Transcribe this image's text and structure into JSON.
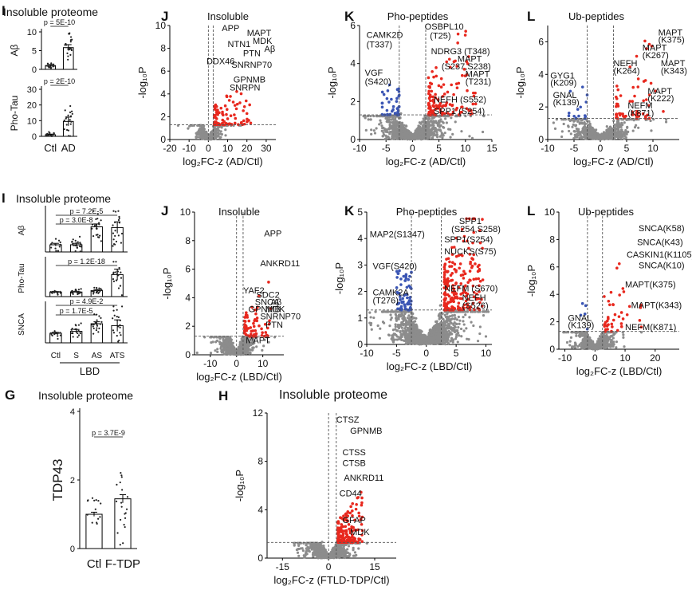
{
  "colors": {
    "up": "#e8281e",
    "down": "#3a55b4",
    "ns": "#8c8c8c",
    "bar": "#000000",
    "dot": "#222222"
  },
  "chart_data": [
    {
      "id": "bar-ad-abeta",
      "type": "bar",
      "panel_letter": "I",
      "title": "Insoluble proteome",
      "ylabel": "Aβ",
      "categories": [
        "Ctl",
        "AD"
      ],
      "values": [
        1.0,
        5.8
      ],
      "errors": [
        0.3,
        0.8
      ],
      "ylim": [
        0,
        10
      ],
      "yticks": [
        "0",
        "5",
        "10"
      ],
      "pvalues": [
        {
          "text": "p = 5E-10",
          "pair": [
            0,
            1
          ]
        }
      ],
      "show_xlabels": false
    },
    {
      "id": "bar-ad-ptau",
      "type": "bar",
      "ylabel": "Pho-Tau",
      "categories": [
        "Ctl",
        "AD"
      ],
      "values": [
        1.0,
        9.5
      ],
      "errors": [
        0.4,
        2.8
      ],
      "ylim": [
        0,
        30
      ],
      "yticks": [
        "0",
        "10",
        "20",
        "30"
      ],
      "pvalues": [
        {
          "text": "p = 2E-10",
          "pair": [
            0,
            1
          ]
        }
      ],
      "show_xlabels": true
    },
    {
      "id": "bar-lbd-abeta",
      "type": "bar",
      "panel_letter": "I",
      "title": "Insoluble proteome",
      "ylabel": "Aβ",
      "categories": [
        "Ctl",
        "S",
        "AS",
        "ATS"
      ],
      "values": [
        1.0,
        1.0,
        3.5,
        3.4
      ],
      "errors": [
        0.2,
        0.2,
        0.4,
        0.8
      ],
      "ylim": [
        0,
        6
      ],
      "pvalues": [
        {
          "text": "p = 7.2E-5",
          "pair": [
            0,
            3
          ]
        },
        {
          "text": "p = 3.0E-8",
          "pair": [
            0,
            2
          ]
        }
      ],
      "show_xlabels": false
    },
    {
      "id": "bar-lbd-ptau",
      "type": "bar",
      "ylabel": "Pho-Tau",
      "categories": [
        "Ctl",
        "S",
        "AS",
        "ATS"
      ],
      "values": [
        1.0,
        1.0,
        1.3,
        4.8
      ],
      "errors": [
        0.1,
        0.1,
        0.2,
        1.2
      ],
      "ylim": [
        0,
        8
      ],
      "pvalues": [
        {
          "text": "p = 1.2E-18",
          "pair": [
            0,
            3
          ]
        }
      ],
      "show_xlabels": false
    },
    {
      "id": "bar-lbd-snca",
      "type": "bar",
      "ylabel": "SNCA",
      "categories": [
        "Ctl",
        "S",
        "AS",
        "ATS"
      ],
      "values": [
        1.0,
        1.2,
        2.0,
        1.8
      ],
      "errors": [
        0.1,
        0.2,
        0.2,
        0.6
      ],
      "ylim": [
        0,
        4
      ],
      "pvalues": [
        {
          "text": "p = 4.9E-2",
          "pair": [
            0,
            3
          ]
        },
        {
          "text": "p = 1.7E-5",
          "pair": [
            0,
            2
          ]
        }
      ],
      "show_xlabels": true,
      "group_label": "LBD"
    },
    {
      "id": "bar-ftd-tdp43",
      "type": "bar",
      "panel_letter": "G",
      "title": "Insoluble proteome",
      "ylabel": "TDP43",
      "categories": [
        "Ctl",
        "F-TDP"
      ],
      "values": [
        1.0,
        1.45
      ],
      "errors": [
        0.06,
        0.12
      ],
      "ylim": [
        0,
        4
      ],
      "yticks": [
        "0",
        "2",
        "4"
      ],
      "pvalues": [
        {
          "text": "p = 3.7E-9",
          "pair": [
            0,
            1
          ]
        }
      ],
      "show_xlabels": true
    },
    {
      "id": "volc-ad-insoluble",
      "type": "scatter",
      "panel_letter": "J",
      "title": "Insoluble",
      "xlabel": "log₂FC-z (AD/Ctl)",
      "ylabel": "-log₁₀P",
      "xlim": [
        -20,
        35
      ],
      "ylim": [
        0,
        10
      ],
      "xticks": [
        -20,
        -10,
        0,
        10,
        20,
        30
      ],
      "yticks": [
        0,
        2,
        4,
        6,
        8,
        10
      ],
      "fc_threshold": 2.5,
      "p_threshold": 1.3,
      "seed": 11,
      "spread": [
        18,
        16
      ],
      "peak": 2.8,
      "n_ns": 700,
      "n_up": 90,
      "n_down": 0,
      "up_range": [
        3,
        22
      ],
      "labels": [
        {
          "text": "APP",
          "x": 7,
          "y": 9.5
        },
        {
          "text": "MAPT",
          "x": 20,
          "y": 9.1
        },
        {
          "text": "MDK",
          "x": 23,
          "y": 8.4
        },
        {
          "text": "Aβ",
          "x": 29,
          "y": 7.7
        },
        {
          "text": "NTN1",
          "x": 10,
          "y": 8.1
        },
        {
          "text": "PTN",
          "x": 18,
          "y": 7.3
        },
        {
          "text": "DDX46",
          "x": -1,
          "y": 6.6
        },
        {
          "text": "SNRNP70",
          "x": 12,
          "y": 6.3
        },
        {
          "text": "GPNMB",
          "x": 13,
          "y": 5.0
        },
        {
          "text": "SNRPN",
          "x": 11,
          "y": 4.3
        }
      ]
    },
    {
      "id": "volc-ad-pho",
      "type": "scatter",
      "panel_letter": "K",
      "title": "Pho-peptides",
      "xlabel": "log₂FC-z (AD/Ctl)",
      "ylabel": "-log₁₀P",
      "xlim": [
        -10,
        15
      ],
      "ylim": [
        0,
        6
      ],
      "xticks": [
        -10,
        -5,
        0,
        5,
        10,
        15
      ],
      "yticks": [
        0,
        2,
        4,
        6
      ],
      "fc_threshold": 2.5,
      "p_threshold": 1.3,
      "seed": 23,
      "spread": [
        4.5,
        4.2
      ],
      "peak": 3.5,
      "n_ns": 1300,
      "n_up": 130,
      "n_down": 40,
      "up_range": [
        3,
        12
      ],
      "down_range": [
        -6,
        -2.5
      ],
      "labels": [
        {
          "text": "CAMK2D",
          "x": -8.7,
          "y": 5.35
        },
        {
          "text": "(T337)",
          "x": -8.7,
          "y": 4.85
        },
        {
          "text": "OSBPL10",
          "x": 2.3,
          "y": 5.8
        },
        {
          "text": "(T25)",
          "x": 3.3,
          "y": 5.3
        },
        {
          "text": "NDRG3 (T348)",
          "x": 3.5,
          "y": 4.5
        },
        {
          "text": "MAPT",
          "x": 8.5,
          "y": 4.1
        },
        {
          "text": "(S237,S238)",
          "x": 5.5,
          "y": 3.7
        },
        {
          "text": "MAPT",
          "x": 10,
          "y": 3.3
        },
        {
          "text": "(T231)",
          "x": 10,
          "y": 2.9
        },
        {
          "text": "VGF",
          "x": -9,
          "y": 3.35
        },
        {
          "text": "(S420)",
          "x": -9,
          "y": 2.9
        },
        {
          "text": "NEFH (S552)",
          "x": 4,
          "y": 1.95
        },
        {
          "text": "SPP1 (S254)",
          "x": 4,
          "y": 1.35
        }
      ]
    },
    {
      "id": "volc-ad-ub",
      "type": "scatter",
      "panel_letter": "L",
      "title": "Ub-peptides",
      "xlabel": "log₂FC-z (AD/Ctl)",
      "ylabel": "-log₁₀P",
      "xlim": [
        -10,
        15
      ],
      "ylim": [
        0,
        7
      ],
      "xticks": [
        -10,
        -5,
        0,
        5,
        10
      ],
      "yticks": [
        0,
        2,
        4,
        6
      ],
      "fc_threshold": 2.5,
      "p_threshold": 1.3,
      "seed": 37,
      "spread": [
        4.5,
        3.6
      ],
      "peak": 4.0,
      "n_ns": 800,
      "n_up": 60,
      "n_down": 14,
      "up_range": [
        3,
        12
      ],
      "down_range": [
        -6,
        -2.5
      ],
      "labels": [
        {
          "text": "MAPT",
          "x": 11,
          "y": 6.4
        },
        {
          "text": "(K375)",
          "x": 11,
          "y": 5.95
        },
        {
          "text": "MAPT",
          "x": 8,
          "y": 5.45
        },
        {
          "text": "(K267)",
          "x": 8,
          "y": 5.0
        },
        {
          "text": "MAPT",
          "x": 11.5,
          "y": 4.5
        },
        {
          "text": "(K343)",
          "x": 11.5,
          "y": 4.05
        },
        {
          "text": "NEFH",
          "x": 2.5,
          "y": 4.5
        },
        {
          "text": "(K264)",
          "x": 2.5,
          "y": 4.05
        },
        {
          "text": "GYG1",
          "x": -9.5,
          "y": 3.75
        },
        {
          "text": "(K209)",
          "x": -9.5,
          "y": 3.3
        },
        {
          "text": "GNAL",
          "x": -9,
          "y": 2.55
        },
        {
          "text": "(K139)",
          "x": -9,
          "y": 2.1
        },
        {
          "text": "MAPT",
          "x": 9,
          "y": 2.8
        },
        {
          "text": "(K222)",
          "x": 9,
          "y": 2.35
        },
        {
          "text": "NEFM",
          "x": 5.2,
          "y": 1.9
        },
        {
          "text": "(K871)",
          "x": 5.2,
          "y": 1.45
        }
      ]
    },
    {
      "id": "volc-lbd-insoluble",
      "type": "scatter",
      "panel_letter": "J",
      "title": "Insoluble",
      "xlabel": "log₂FC-z (LBD/Ctl)",
      "ylabel": "-log₁₀P",
      "xlim": [
        -16,
        18
      ],
      "ylim": [
        0,
        10
      ],
      "xticks": [
        -10,
        0,
        10
      ],
      "yticks": [
        0,
        2,
        4,
        6,
        8,
        10
      ],
      "fc_threshold": 2.5,
      "p_threshold": 1.3,
      "seed": 41,
      "spread": [
        10,
        13
      ],
      "peak": 2.5,
      "n_ns": 1300,
      "n_up": 70,
      "n_down": 0,
      "up_range": [
        3,
        13
      ],
      "labels": [
        {
          "text": "APP",
          "x": 10.5,
          "y": 8.3
        },
        {
          "text": "ANKRD11",
          "x": 9,
          "y": 6.2
        },
        {
          "text": "YAF2",
          "x": 2.5,
          "y": 4.3
        },
        {
          "text": "SDC2",
          "x": 7.5,
          "y": 4.0
        },
        {
          "text": "SNCA",
          "x": 7,
          "y": 3.5
        },
        {
          "text": "Aβ",
          "x": 13,
          "y": 3.5
        },
        {
          "text": "GPNMB",
          "x": 4.5,
          "y": 3.0
        },
        {
          "text": "MDK",
          "x": 11,
          "y": 3.0
        },
        {
          "text": "SNRNP70",
          "x": 9,
          "y": 2.5
        },
        {
          "text": "PTN",
          "x": 11,
          "y": 1.9
        },
        {
          "text": "MAPT",
          "x": 3.5,
          "y": 0.8
        }
      ]
    },
    {
      "id": "volc-lbd-pho",
      "type": "scatter",
      "panel_letter": "K",
      "title": "Pho-peptides",
      "xlabel": "log₂FC-z (LBD/Ctl)",
      "ylabel": "-log₁₀P",
      "xlim": [
        -10,
        11
      ],
      "ylim": [
        0,
        5
      ],
      "xticks": [
        -10,
        -5,
        0,
        5,
        10
      ],
      "yticks": [
        0,
        1,
        2,
        3,
        4,
        5
      ],
      "fc_threshold": 2.5,
      "p_threshold": 1.3,
      "seed": 53,
      "spread": [
        4.6,
        3.4
      ],
      "peak": 3.0,
      "n_ns": 1800,
      "n_up": 220,
      "n_down": 70,
      "up_range": [
        3,
        9.5
      ],
      "down_range": [
        -5,
        -2.5
      ],
      "labels": [
        {
          "text": "SPP1",
          "x": 5.5,
          "y": 4.55
        },
        {
          "text": "(S254,S258)",
          "x": 4.2,
          "y": 4.25
        },
        {
          "text": "SPP1(S254)",
          "x": 3,
          "y": 3.85
        },
        {
          "text": "NUCKS(S75)",
          "x": 3,
          "y": 3.4
        },
        {
          "text": "MAP2(S1347)",
          "x": -9.5,
          "y": 4.05
        },
        {
          "text": "VGF(S420)",
          "x": -9,
          "y": 2.85
        },
        {
          "text": "CAMK2A",
          "x": -9,
          "y": 1.85
        },
        {
          "text": "(T276)",
          "x": -9,
          "y": 1.55
        },
        {
          "text": "NEFM (S670)",
          "x": 3,
          "y": 2.0
        },
        {
          "text": "NEFH",
          "x": 6,
          "y": 1.65
        },
        {
          "text": "(S526)",
          "x": 6,
          "y": 1.35
        }
      ]
    },
    {
      "id": "volc-lbd-ub",
      "type": "scatter",
      "panel_letter": "L",
      "title": "Ub-peptides",
      "xlabel": "log₂FC-z (LBD/Ctl)",
      "ylabel": "-log₁₀P",
      "xlim": [
        -12,
        28
      ],
      "ylim": [
        0,
        10
      ],
      "xticks": [
        -10,
        0,
        10,
        20
      ],
      "yticks": [
        0,
        2,
        4,
        6,
        8,
        10
      ],
      "fc_threshold": 2.5,
      "p_threshold": 1.3,
      "seed": 67,
      "spread": [
        6,
        6
      ],
      "peak": 5.0,
      "n_ns": 900,
      "n_up": 40,
      "n_down": 5,
      "up_range": [
        3,
        16
      ],
      "down_range": [
        -5,
        -2.5
      ],
      "labels": [
        {
          "text": "SNCA(K58)",
          "x": 14.5,
          "y": 8.6
        },
        {
          "text": "SNCA(K43)",
          "x": 14,
          "y": 7.6
        },
        {
          "text": "CASKIN1(K1105)",
          "x": 10.5,
          "y": 6.7
        },
        {
          "text": "SNCA(K10)",
          "x": 14.5,
          "y": 5.9
        },
        {
          "text": "MAPT(K375)",
          "x": 10,
          "y": 4.5
        },
        {
          "text": "MAPT(K343)",
          "x": 12,
          "y": 3.0
        },
        {
          "text": "NEFM(K871)",
          "x": 10,
          "y": 1.4
        },
        {
          "text": "GNAL",
          "x": -9,
          "y": 2.05
        },
        {
          "text": "(K139)",
          "x": -9,
          "y": 1.55
        }
      ]
    },
    {
      "id": "volc-ftd-insoluble",
      "type": "scatter",
      "panel_letter": "H",
      "title": "Insoluble proteome",
      "xlabel": "log₂FC-z (FTLD-TDP/Ctl)",
      "ylabel": "-log₁₀P",
      "xlim": [
        -20,
        22
      ],
      "ylim": [
        0,
        12
      ],
      "xticks": [
        -15,
        0,
        15
      ],
      "yticks": [
        0,
        4,
        8,
        12
      ],
      "fc_threshold": 2.5,
      "p_threshold": 1.3,
      "seed": 79,
      "spread": [
        8,
        5
      ],
      "peak": 3.0,
      "n_ns": 1500,
      "n_up": 160,
      "n_down": 0,
      "up_range": [
        3,
        11
      ],
      "labels": [
        {
          "text": "CTSZ",
          "x": 2.5,
          "y": 11.2
        },
        {
          "text": "GPNMB",
          "x": 7,
          "y": 10.3
        },
        {
          "text": "CTSS",
          "x": 4.5,
          "y": 8.5
        },
        {
          "text": "CTSB",
          "x": 4.5,
          "y": 7.6
        },
        {
          "text": "ANKRD11",
          "x": 5,
          "y": 6.4
        },
        {
          "text": "CD44",
          "x": 3.5,
          "y": 5.1
        },
        {
          "text": "GFAP",
          "x": 4.5,
          "y": 2.9
        },
        {
          "text": "MDK",
          "x": 7,
          "y": 1.9
        }
      ]
    }
  ]
}
